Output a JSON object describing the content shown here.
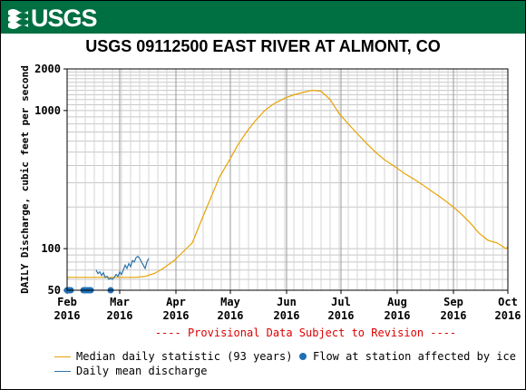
{
  "header": {
    "logo_text": "USGS"
  },
  "chart_data": {
    "type": "line",
    "title": "USGS 09112500 EAST RIVER AT ALMONT, CO",
    "ylabel": "DAILY Discharge, cubic feet per second",
    "y_scale": "log",
    "ylim": [
      50,
      2000
    ],
    "y_ticks": [
      50,
      100,
      1000,
      2000
    ],
    "x_ticks": [
      {
        "line1": "Feb",
        "line2": "2016"
      },
      {
        "line1": "Mar",
        "line2": "2016"
      },
      {
        "line1": "Apr",
        "line2": "2016"
      },
      {
        "line1": "May",
        "line2": "2016"
      },
      {
        "line1": "Jun",
        "line2": "2016"
      },
      {
        "line1": "Jul",
        "line2": "2016"
      },
      {
        "line1": "Aug",
        "line2": "2016"
      },
      {
        "line1": "Sep",
        "line2": "2016"
      },
      {
        "line1": "Oct",
        "line2": "2016"
      }
    ],
    "annotation": "---- Provisional Data Subject to Revision ----",
    "grid": true,
    "series": [
      {
        "name": "Median daily statistic (93 years)",
        "color": "#e8a202",
        "points": [
          [
            "2016-02-01",
            62
          ],
          [
            "2016-02-10",
            62
          ],
          [
            "2016-02-20",
            62
          ],
          [
            "2016-03-01",
            62
          ],
          [
            "2016-03-10",
            62
          ],
          [
            "2016-03-15",
            63
          ],
          [
            "2016-03-20",
            66
          ],
          [
            "2016-03-25",
            72
          ],
          [
            "2016-03-31",
            82
          ],
          [
            "2016-04-05",
            95
          ],
          [
            "2016-04-10",
            110
          ],
          [
            "2016-04-15",
            160
          ],
          [
            "2016-04-20",
            230
          ],
          [
            "2016-04-25",
            330
          ],
          [
            "2016-05-01",
            450
          ],
          [
            "2016-05-05",
            560
          ],
          [
            "2016-05-10",
            700
          ],
          [
            "2016-05-15",
            850
          ],
          [
            "2016-05-20",
            1000
          ],
          [
            "2016-05-25",
            1120
          ],
          [
            "2016-05-31",
            1230
          ],
          [
            "2016-06-05",
            1300
          ],
          [
            "2016-06-10",
            1350
          ],
          [
            "2016-06-15",
            1400
          ],
          [
            "2016-06-20",
            1380
          ],
          [
            "2016-06-25",
            1200
          ],
          [
            "2016-06-30",
            950
          ],
          [
            "2016-07-05",
            800
          ],
          [
            "2016-07-10",
            680
          ],
          [
            "2016-07-15",
            580
          ],
          [
            "2016-07-20",
            500
          ],
          [
            "2016-07-25",
            440
          ],
          [
            "2016-07-31",
            390
          ],
          [
            "2016-08-05",
            350
          ],
          [
            "2016-08-10",
            320
          ],
          [
            "2016-08-15",
            290
          ],
          [
            "2016-08-20",
            260
          ],
          [
            "2016-08-25",
            235
          ],
          [
            "2016-08-31",
            205
          ],
          [
            "2016-09-05",
            180
          ],
          [
            "2016-09-10",
            155
          ],
          [
            "2016-09-15",
            130
          ],
          [
            "2016-09-20",
            115
          ],
          [
            "2016-09-25",
            110
          ],
          [
            "2016-09-30",
            100
          ],
          [
            "2016-10-01",
            103
          ]
        ]
      },
      {
        "name": "Daily mean discharge",
        "color": "#2f73a8",
        "points": [
          [
            "2016-02-17",
            70
          ],
          [
            "2016-02-18",
            66
          ],
          [
            "2016-02-19",
            68
          ],
          [
            "2016-02-20",
            64
          ],
          [
            "2016-02-21",
            67
          ],
          [
            "2016-02-22",
            62
          ],
          [
            "2016-02-23",
            63
          ],
          [
            "2016-02-24",
            60
          ],
          [
            "2016-02-25",
            61
          ],
          [
            "2016-02-26",
            60
          ],
          [
            "2016-02-27",
            62
          ],
          [
            "2016-02-28",
            65
          ],
          [
            "2016-02-29",
            63
          ],
          [
            "2016-03-01",
            68
          ],
          [
            "2016-03-02",
            65
          ],
          [
            "2016-03-03",
            70
          ],
          [
            "2016-03-04",
            76
          ],
          [
            "2016-03-05",
            72
          ],
          [
            "2016-03-06",
            78
          ],
          [
            "2016-03-07",
            74
          ],
          [
            "2016-03-08",
            82
          ],
          [
            "2016-03-09",
            80
          ],
          [
            "2016-03-10",
            86
          ],
          [
            "2016-03-11",
            88
          ],
          [
            "2016-03-12",
            85
          ],
          [
            "2016-03-13",
            80
          ],
          [
            "2016-03-14",
            76
          ],
          [
            "2016-03-15",
            72
          ],
          [
            "2016-03-16",
            80
          ],
          [
            "2016-03-17",
            85
          ]
        ]
      },
      {
        "name": "Flow at station affected by ice",
        "color": "#1f6fb5",
        "points": [
          [
            "2016-02-01",
            50
          ],
          [
            "2016-02-02",
            50
          ],
          [
            "2016-02-03",
            50
          ],
          [
            "2016-02-10",
            50
          ],
          [
            "2016-02-11",
            50
          ],
          [
            "2016-02-12",
            50
          ],
          [
            "2016-02-13",
            50
          ],
          [
            "2016-02-14",
            50
          ],
          [
            "2016-02-25",
            50
          ]
        ]
      }
    ]
  },
  "legend": {
    "items": [
      {
        "label": "Median daily statistic (93 years)",
        "color": "#e8a202"
      },
      {
        "label": "Flow at station affected by ice",
        "color": "#1f6fb5"
      },
      {
        "label": "Daily mean discharge",
        "color": "#2f73a8"
      }
    ]
  }
}
